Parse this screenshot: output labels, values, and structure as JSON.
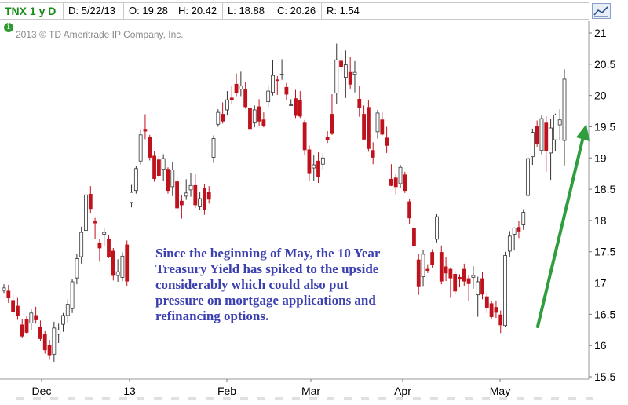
{
  "header": {
    "symbol_label": "TNX 1 y D",
    "date_field": "D: 5/22/13",
    "open_field": "O: 19.28",
    "high_field": "H: 20.42",
    "low_field": "L: 18.88",
    "close_field": "C: 20.26",
    "range_field": "R: 1.54"
  },
  "copyright": "2013 © TD Ameritrade IP Company, Inc.",
  "info_icon_glyph": "i",
  "annotation": "Since the beginning of May, the 10 Year Treasury Yield has spiked to the upside considerably which could also put pressure on mortgage applications and refinancing options.",
  "colors": {
    "up": "#ffffff",
    "down": "#c0121c",
    "candle_outline": "#333333",
    "arrow": "#2e9e3e",
    "annotation": "#3b3fb0",
    "grid": "#d8d8d8"
  },
  "chart_data": {
    "type": "candlestick",
    "ylim": [
      15.5,
      21.2
    ],
    "y_ticks": [
      "21",
      "20.5",
      "20",
      "19.5",
      "19",
      "18.5",
      "18",
      "17.5",
      "17",
      "16.5",
      "16",
      "15.5"
    ],
    "x_ticks": [
      "Dec",
      "13",
      "Feb",
      "Mar",
      "Apr",
      "May"
    ],
    "last_close": 20.26,
    "candles": [
      [
        16.88,
        16.98,
        16.84,
        16.92
      ],
      [
        16.87,
        16.97,
        16.68,
        16.76
      ],
      [
        16.72,
        16.82,
        16.49,
        16.54
      ],
      [
        16.63,
        16.76,
        16.41,
        16.48
      ],
      [
        16.33,
        16.42,
        16.12,
        16.15
      ],
      [
        16.42,
        16.48,
        16.19,
        16.21
      ],
      [
        16.36,
        16.58,
        16.25,
        16.52
      ],
      [
        16.48,
        16.62,
        16.35,
        16.41
      ],
      [
        16.29,
        16.4,
        16.07,
        16.11
      ],
      [
        16.18,
        16.23,
        15.87,
        15.93
      ],
      [
        16.0,
        16.09,
        15.77,
        15.85
      ],
      [
        15.86,
        16.38,
        15.74,
        16.28
      ],
      [
        16.18,
        16.35,
        16.04,
        16.25
      ],
      [
        16.34,
        16.52,
        16.22,
        16.48
      ],
      [
        16.48,
        16.74,
        16.36,
        16.66
      ],
      [
        16.59,
        17.06,
        16.52,
        17.02
      ],
      [
        17.08,
        17.47,
        16.98,
        17.39
      ],
      [
        17.42,
        17.9,
        17.31,
        17.81
      ],
      [
        17.84,
        18.51,
        17.76,
        18.41
      ],
      [
        18.42,
        18.55,
        18.11,
        18.19
      ],
      [
        17.98,
        18.04,
        17.71,
        17.96
      ],
      [
        17.64,
        17.71,
        17.34,
        17.56
      ],
      [
        17.78,
        17.87,
        17.59,
        17.81
      ],
      [
        17.7,
        17.77,
        17.4,
        17.42
      ],
      [
        17.51,
        17.56,
        17.04,
        17.12
      ],
      [
        17.12,
        17.38,
        17.02,
        17.18
      ],
      [
        17.09,
        17.49,
        17.03,
        17.43
      ],
      [
        17.61,
        17.68,
        16.95,
        17.03
      ],
      [
        18.29,
        18.57,
        18.21,
        18.45
      ],
      [
        18.48,
        18.87,
        18.43,
        18.83
      ],
      [
        18.95,
        19.46,
        18.89,
        19.37
      ],
      [
        19.46,
        19.7,
        19.3,
        19.43
      ],
      [
        19.33,
        19.37,
        18.96,
        19.01
      ],
      [
        19.03,
        19.11,
        18.62,
        18.67
      ],
      [
        18.97,
        19.03,
        18.69,
        18.72
      ],
      [
        18.82,
        19.06,
        18.63,
        18.99
      ],
      [
        18.82,
        18.85,
        18.43,
        18.48
      ],
      [
        18.54,
        18.93,
        18.39,
        18.81
      ],
      [
        18.62,
        18.69,
        18.14,
        18.2
      ],
      [
        18.31,
        18.41,
        18.03,
        18.25
      ],
      [
        18.39,
        18.66,
        18.33,
        18.44
      ],
      [
        18.49,
        18.76,
        18.38,
        18.56
      ],
      [
        18.56,
        18.74,
        18.2,
        18.25
      ],
      [
        18.22,
        18.45,
        18.17,
        18.35
      ],
      [
        18.52,
        18.58,
        18.09,
        18.18
      ],
      [
        18.45,
        18.55,
        18.27,
        18.34
      ],
      [
        19.01,
        19.36,
        18.92,
        19.31
      ],
      [
        19.54,
        19.78,
        19.5,
        19.73
      ],
      [
        19.7,
        19.89,
        19.55,
        19.59
      ],
      [
        19.77,
        20.07,
        19.68,
        19.93
      ],
      [
        19.96,
        20.16,
        19.86,
        19.93
      ],
      [
        20.18,
        20.35,
        19.99,
        20.05
      ],
      [
        20.1,
        20.38,
        19.99,
        20.15
      ],
      [
        20.09,
        20.21,
        19.79,
        19.82
      ],
      [
        19.8,
        19.89,
        19.43,
        19.47
      ],
      [
        19.56,
        19.84,
        19.49,
        19.77
      ],
      [
        19.82,
        19.94,
        19.52,
        19.59
      ],
      [
        19.61,
        19.73,
        19.49,
        19.52
      ],
      [
        19.9,
        20.15,
        19.82,
        20.07
      ],
      [
        20.05,
        20.56,
        20.0,
        20.32
      ],
      [
        20.25,
        20.31,
        20.01,
        20.24
      ],
      [
        20.33,
        20.58,
        20.25,
        20.34
      ],
      [
        20.13,
        20.2,
        19.93,
        20.02
      ],
      [
        19.85,
        19.94,
        19.84,
        19.85
      ],
      [
        19.95,
        20.09,
        19.64,
        19.68
      ],
      [
        19.92,
        20.07,
        19.64,
        19.67
      ],
      [
        19.56,
        19.61,
        19.05,
        19.13
      ],
      [
        19.13,
        19.2,
        18.64,
        18.75
      ],
      [
        18.84,
        19.04,
        18.64,
        18.89
      ],
      [
        18.95,
        19.09,
        18.6,
        18.7
      ],
      [
        18.9,
        19.08,
        18.81,
        19.0
      ],
      [
        19.33,
        19.43,
        19.24,
        19.29
      ],
      [
        19.7,
        20.02,
        19.37,
        19.39
      ],
      [
        20.04,
        20.83,
        19.87,
        20.57
      ],
      [
        20.55,
        20.7,
        20.33,
        20.46
      ],
      [
        20.29,
        20.72,
        19.96,
        20.49
      ],
      [
        20.37,
        20.62,
        20.11,
        20.18
      ],
      [
        20.34,
        20.55,
        20.05,
        20.37
      ],
      [
        19.94,
        20.15,
        19.66,
        19.81
      ],
      [
        19.7,
        19.84,
        19.28,
        19.3
      ],
      [
        19.81,
        19.92,
        19.1,
        19.15
      ],
      [
        19.12,
        19.25,
        18.9,
        19.01
      ],
      [
        19.42,
        19.77,
        19.31,
        19.72
      ],
      [
        19.61,
        19.73,
        19.36,
        19.38
      ],
      [
        19.32,
        19.5,
        19.08,
        19.2
      ],
      [
        18.66,
        18.9,
        18.55,
        18.56
      ],
      [
        18.68,
        18.74,
        18.42,
        18.54
      ],
      [
        18.59,
        18.89,
        18.52,
        18.85
      ],
      [
        18.73,
        18.78,
        18.44,
        18.48
      ],
      [
        18.3,
        18.35,
        17.95,
        18.04
      ],
      [
        17.87,
        17.99,
        17.57,
        17.6
      ],
      [
        17.37,
        17.47,
        16.81,
        16.94
      ],
      [
        17.1,
        17.53,
        16.94,
        17.46
      ],
      [
        17.22,
        17.3,
        17.16,
        17.2
      ],
      [
        17.49,
        17.54,
        17.24,
        17.3
      ],
      [
        17.7,
        18.1,
        17.65,
        18.06
      ],
      [
        17.49,
        17.6,
        16.98,
        17.03
      ],
      [
        17.26,
        17.41,
        17.03,
        17.16
      ],
      [
        17.22,
        17.25,
        16.76,
        17.08
      ],
      [
        17.14,
        17.19,
        16.83,
        16.87
      ],
      [
        17.09,
        17.14,
        16.93,
        17.06
      ],
      [
        17.22,
        17.31,
        16.95,
        17.03
      ],
      [
        17.07,
        17.12,
        16.71,
        16.99
      ],
      [
        17.09,
        17.27,
        16.91,
        17.12
      ],
      [
        16.81,
        17.1,
        16.46,
        17.02
      ],
      [
        17.07,
        17.18,
        16.74,
        16.82
      ],
      [
        16.78,
        16.85,
        16.52,
        16.61
      ],
      [
        16.67,
        16.71,
        16.43,
        16.46
      ],
      [
        16.61,
        16.72,
        16.44,
        16.53
      ],
      [
        16.49,
        16.56,
        16.2,
        16.33
      ],
      [
        16.32,
        17.5,
        16.3,
        17.44
      ],
      [
        17.51,
        17.83,
        17.42,
        17.75
      ],
      [
        17.78,
        17.89,
        17.52,
        17.88
      ],
      [
        17.89,
        17.99,
        17.72,
        17.83
      ],
      [
        17.93,
        18.18,
        17.85,
        18.13
      ],
      [
        18.4,
        19.03,
        18.37,
        18.99
      ],
      [
        19.02,
        19.47,
        18.89,
        19.41
      ],
      [
        19.5,
        19.6,
        19.18,
        19.23
      ],
      [
        19.12,
        19.68,
        19.06,
        19.63
      ],
      [
        19.56,
        19.67,
        18.78,
        19.12
      ],
      [
        19.08,
        19.62,
        18.65,
        19.48
      ],
      [
        19.29,
        19.71,
        19.11,
        19.69
      ],
      [
        19.53,
        19.78,
        19.29,
        19.61
      ],
      [
        19.28,
        20.42,
        18.88,
        20.26
      ]
    ]
  }
}
